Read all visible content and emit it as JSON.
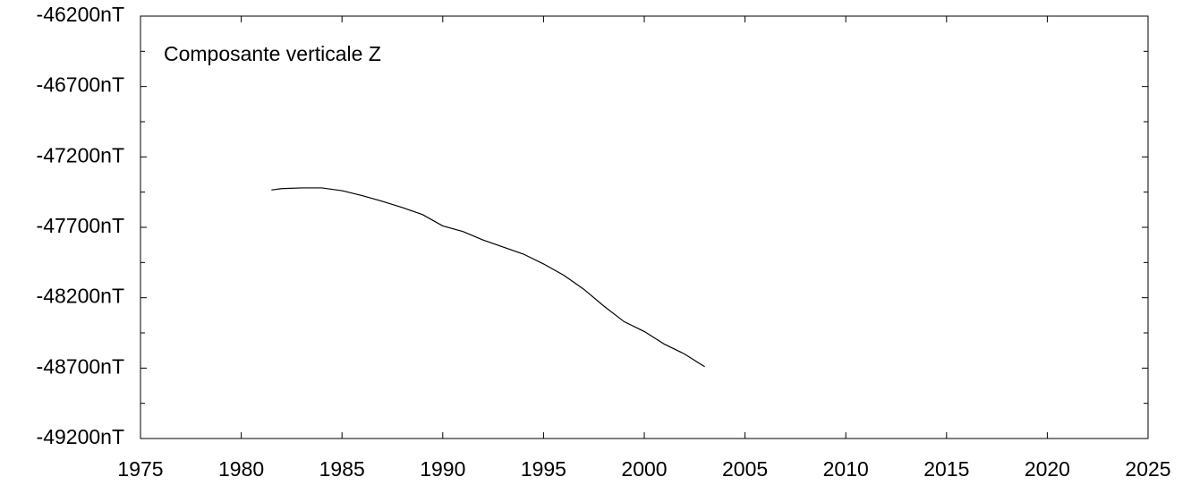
{
  "chart_data": {
    "type": "line",
    "annotation": "Composante verticale Z",
    "x": [
      1981.5,
      1982,
      1983,
      1984,
      1985,
      1986,
      1987,
      1988,
      1989,
      1990,
      1991,
      1992,
      1993,
      1994,
      1995,
      1996,
      1997,
      1998,
      1999,
      2000,
      2001,
      2002,
      2003
    ],
    "series": [
      {
        "color": "#000000",
        "values": [
          -47435,
          -47425,
          -47420,
          -47420,
          -47440,
          -47475,
          -47515,
          -47560,
          -47610,
          -47690,
          -47730,
          -47790,
          -47840,
          -47890,
          -47960,
          -48040,
          -48140,
          -48260,
          -48370,
          -48440,
          -48530,
          -48600,
          -48690
        ]
      }
    ],
    "xlim": [
      1975,
      2025
    ],
    "xticks": [
      1975,
      1980,
      1985,
      1990,
      1995,
      2000,
      2005,
      2010,
      2015,
      2020,
      2025
    ],
    "ylim": [
      -49200,
      -46200
    ],
    "yticks": [
      {
        "value": -46200,
        "label": "-46200nT"
      },
      {
        "value": -46700,
        "label": "-46700nT"
      },
      {
        "value": -47200,
        "label": "-47200nT"
      },
      {
        "value": -47700,
        "label": "-47700nT"
      },
      {
        "value": -48200,
        "label": "-48200nT"
      },
      {
        "value": -48700,
        "label": "-48700nT"
      },
      {
        "value": -49200,
        "label": "-49200nT"
      }
    ],
    "yminor_ticks": [
      -46450,
      -46950,
      -47450,
      -47950,
      -48450,
      -48950
    ],
    "grid": false
  }
}
